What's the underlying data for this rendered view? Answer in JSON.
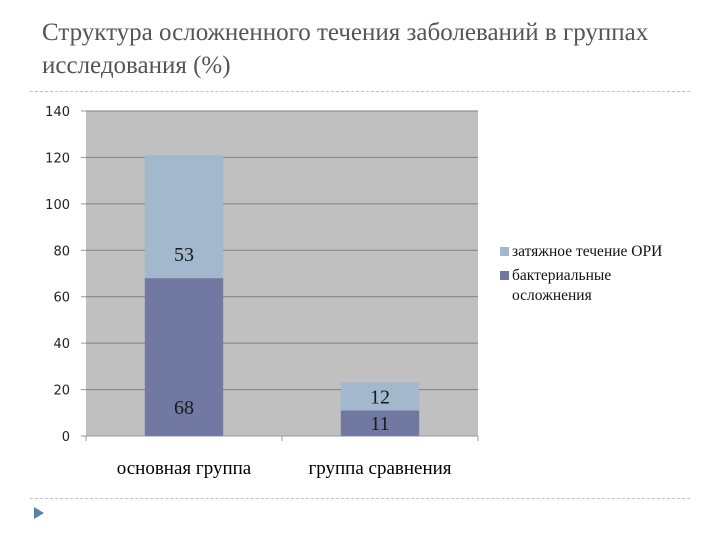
{
  "slide": {
    "title": "Структура осложненного течения заболеваний в группах исследования (%)"
  },
  "colors": {
    "plot_background": "#c0c0c0",
    "gridline": "#7f7f7f",
    "axis": "#999999"
  },
  "chart_data": {
    "type": "bar",
    "stacked": true,
    "categories": [
      "основная группа",
      "группа сравнения"
    ],
    "series": [
      {
        "name": "бактериальные осложнения",
        "values": [
          68,
          11
        ],
        "color": "#7179a2"
      },
      {
        "name": "затяжное течение ОРИ",
        "values": [
          53,
          12
        ],
        "color": "#a3b8cd"
      }
    ],
    "ylim": [
      0,
      140
    ],
    "yticks": [
      0,
      20,
      40,
      60,
      80,
      100,
      120,
      140
    ],
    "legend_position": "right",
    "grid": true
  }
}
